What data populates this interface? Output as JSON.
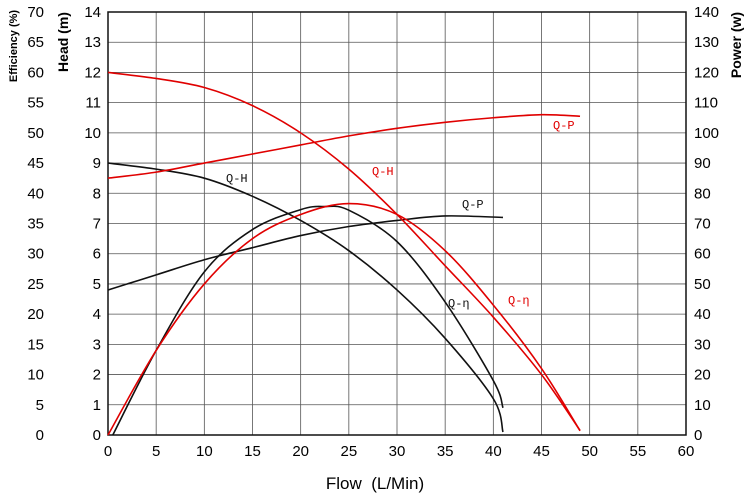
{
  "chart_data": {
    "type": "line",
    "xlabel": "Flow  (L/Min)",
    "ylabel_head": "Head (m)",
    "ylabel_efficiency": "Efficiency (%)",
    "ylabel_power": "Power (w)",
    "x_range": [
      0,
      60
    ],
    "x_ticks": [
      0,
      5,
      10,
      15,
      20,
      25,
      30,
      35,
      40,
      45,
      50,
      55,
      60
    ],
    "head_range": [
      0,
      14
    ],
    "head_ticks": [
      0,
      1,
      2,
      3,
      4,
      5,
      6,
      7,
      8,
      9,
      10,
      11,
      12,
      13,
      14
    ],
    "efficiency_range": [
      0,
      70
    ],
    "efficiency_ticks": [
      0,
      5,
      10,
      15,
      20,
      25,
      30,
      35,
      40,
      45,
      50,
      55,
      60,
      65,
      70
    ],
    "power_range": [
      0,
      140
    ],
    "power_ticks": [
      0,
      10,
      20,
      30,
      40,
      50,
      60,
      70,
      80,
      90,
      100,
      110,
      120,
      130,
      140
    ],
    "grid": true,
    "colors": {
      "black": "#111111",
      "red": "#e00000",
      "grid": "#555555"
    },
    "series": [
      {
        "name": "Q-H",
        "color": "black",
        "axis": "head",
        "x": [
          0,
          5,
          10,
          15,
          20,
          25,
          30,
          35,
          40,
          41
        ],
        "y": [
          9.0,
          8.8,
          8.5,
          7.9,
          7.1,
          6.1,
          4.8,
          3.2,
          1.2,
          0.1
        ]
      },
      {
        "name": "Q-P",
        "color": "black",
        "axis": "power",
        "x": [
          0,
          5,
          10,
          15,
          20,
          25,
          30,
          35,
          41
        ],
        "y": [
          48,
          53,
          58,
          62,
          66,
          69,
          71,
          72.5,
          72
        ]
      },
      {
        "name": "Q-η",
        "color": "black",
        "axis": "efficiency",
        "x": [
          0.5,
          5,
          10,
          15,
          20,
          22.5,
          25,
          30,
          35,
          40,
          41
        ],
        "y": [
          0,
          14,
          27,
          34,
          37.3,
          37.8,
          37.2,
          32,
          22,
          9,
          4.5
        ]
      },
      {
        "name": "Q-H",
        "color": "red",
        "axis": "head",
        "x": [
          0,
          5,
          10,
          15,
          20,
          25,
          30,
          35,
          40,
          45,
          49
        ],
        "y": [
          12.0,
          11.8,
          11.5,
          10.9,
          10.0,
          8.8,
          7.3,
          5.6,
          3.9,
          2.0,
          0.15
        ]
      },
      {
        "name": "Q-P",
        "color": "red",
        "axis": "power",
        "x": [
          0,
          5,
          10,
          15,
          20,
          25,
          30,
          35,
          40,
          45,
          49
        ],
        "y": [
          85,
          87,
          90,
          93,
          96,
          99,
          101.5,
          103.5,
          105,
          106,
          105.5
        ]
      },
      {
        "name": "Q-η",
        "color": "red",
        "axis": "efficiency",
        "x": [
          0,
          5,
          10,
          15,
          20,
          25,
          30,
          35,
          40,
          45,
          49
        ],
        "y": [
          0,
          14,
          25,
          32.5,
          36.5,
          38.3,
          36.5,
          30.5,
          21.5,
          11,
          0.7
        ]
      }
    ]
  }
}
